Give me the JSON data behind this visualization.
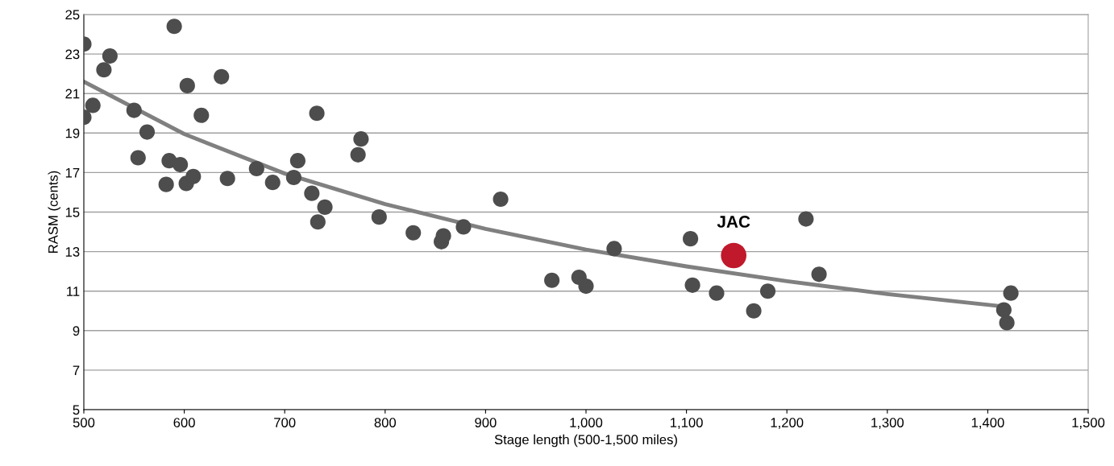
{
  "chart_data": {
    "type": "scatter",
    "xlabel": "Stage length (500-1,500 miles)",
    "ylabel": "RASM (cents)",
    "xlim": [
      500,
      1500
    ],
    "xticks": [
      500,
      600,
      700,
      800,
      900,
      {
        "value": 1000,
        "label": "1,000"
      },
      {
        "value": 1100,
        "label": "1,100"
      },
      {
        "value": 1200,
        "label": "1,200"
      },
      {
        "value": 1300,
        "label": "1,300"
      },
      {
        "value": 1400,
        "label": "1,400"
      },
      {
        "value": 1500,
        "label": "1,500"
      }
    ],
    "ylim": [
      5,
      25
    ],
    "yticks": [
      5,
      7,
      9,
      11,
      13,
      15,
      17,
      19,
      21,
      23,
      25
    ],
    "grid": "y",
    "series": [
      {
        "type": "line",
        "marker": "none",
        "color": "#808080",
        "x": [
          500,
          600,
          700,
          800,
          900,
          1000,
          1100,
          1200,
          1300,
          1420
        ],
        "values": [
          21.6,
          18.95,
          16.95,
          15.4,
          14.15,
          13.1,
          12.25,
          11.5,
          10.85,
          10.2
        ]
      },
      {
        "marker": "circle",
        "color": "#4d4d4d",
        "x": [
          500,
          500,
          509,
          520,
          526,
          590,
          550,
          563,
          554,
          585,
          596,
          582,
          602,
          609,
          603,
          617,
          637,
          643,
          672,
          688,
          709,
          713,
          732,
          727,
          733,
          740,
          773,
          776,
          794,
          828,
          856,
          858,
          878,
          915,
          966,
          993,
          1000,
          1028,
          1104,
          1106,
          1130,
          1167,
          1181,
          1219,
          1232,
          1416,
          1419,
          1423
        ],
        "values": [
          23.5,
          19.8,
          20.4,
          22.2,
          22.9,
          24.4,
          20.15,
          19.05,
          17.75,
          17.6,
          17.4,
          16.4,
          16.45,
          16.8,
          21.4,
          19.9,
          21.85,
          16.7,
          17.2,
          16.5,
          16.75,
          17.6,
          20.0,
          15.95,
          14.5,
          15.25,
          17.9,
          18.7,
          14.75,
          13.95,
          13.5,
          13.8,
          14.25,
          15.65,
          11.55,
          11.7,
          11.25,
          13.15,
          13.65,
          11.3,
          10.9,
          10.0,
          11.0,
          14.65,
          11.85,
          10.05,
          9.4,
          10.9
        ]
      },
      {
        "marker": "circle",
        "name": "JAC",
        "color": "#c0192b",
        "x": [
          1147
        ],
        "values": [
          12.8
        ]
      }
    ]
  }
}
